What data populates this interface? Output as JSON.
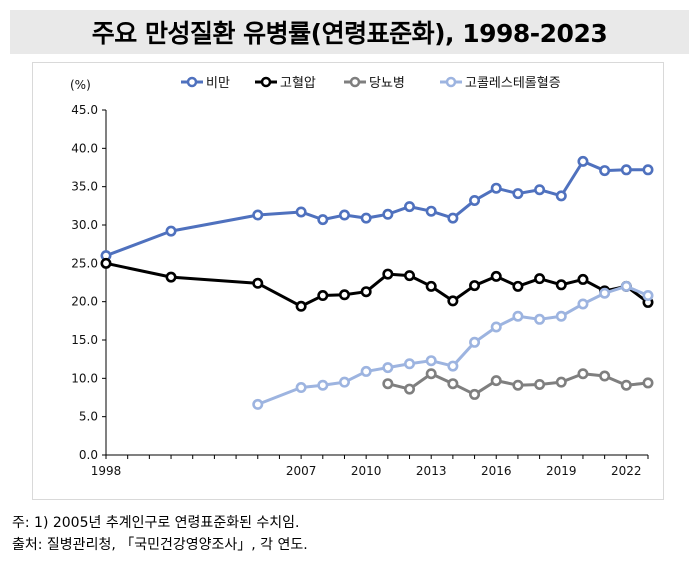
{
  "title": "주요 만성질환 유병률(연령표준화), 1998-2023",
  "notes": [
    "주: 1) 2005년 추계인구로 연령표준화된 수치임.",
    "출처: 질병관리청, 「국민건강영양조사」, 각 연도."
  ],
  "chart_data": {
    "type": "line",
    "ylabel": "(%)",
    "ylim": [
      0,
      45
    ],
    "yticks": [
      "0.0",
      "5.0",
      "10.0",
      "15.0",
      "20.0",
      "25.0",
      "30.0",
      "35.0",
      "40.0",
      "45.0"
    ],
    "xlim": [
      1998,
      2023
    ],
    "xticks": [
      "1998",
      "2007",
      "2010",
      "2013",
      "2016",
      "2019",
      "2022"
    ],
    "legend_position": "top",
    "grid": false,
    "series": [
      {
        "name": "비만",
        "color": "#4f71be",
        "marker_fill": "#ffffff",
        "x": [
          1998,
          2001,
          2005,
          2007,
          2008,
          2009,
          2010,
          2011,
          2012,
          2013,
          2014,
          2015,
          2016,
          2017,
          2018,
          2019,
          2020,
          2021,
          2022,
          2023
        ],
        "y": [
          26.0,
          29.2,
          31.3,
          31.7,
          30.7,
          31.3,
          30.9,
          31.4,
          32.4,
          31.8,
          30.9,
          33.2,
          34.8,
          34.1,
          34.6,
          33.8,
          38.3,
          37.1,
          37.2,
          37.2
        ]
      },
      {
        "name": "고혈압",
        "color": "#000000",
        "marker_fill": "#ffffff",
        "x": [
          1998,
          2001,
          2005,
          2007,
          2008,
          2009,
          2010,
          2011,
          2012,
          2013,
          2014,
          2015,
          2016,
          2017,
          2018,
          2019,
          2020,
          2021,
          2022,
          2023
        ],
        "y": [
          25.0,
          23.2,
          22.4,
          19.4,
          20.8,
          20.9,
          21.3,
          23.6,
          23.4,
          22.0,
          20.1,
          22.1,
          23.3,
          22.0,
          23.0,
          22.2,
          22.9,
          21.4,
          22.0,
          19.9
        ]
      },
      {
        "name": "당뇨병",
        "color": "#7f7f7f",
        "marker_fill": "#ffffff",
        "x": [
          2011,
          2012,
          2013,
          2014,
          2015,
          2016,
          2017,
          2018,
          2019,
          2020,
          2021,
          2022,
          2023
        ],
        "y": [
          9.3,
          8.6,
          10.6,
          9.3,
          7.9,
          9.7,
          9.1,
          9.2,
          9.5,
          10.6,
          10.3,
          9.1,
          9.4
        ]
      },
      {
        "name": "고콜레스테롤혈증",
        "color": "#9db4e0",
        "marker_fill": "#ffffff",
        "x": [
          2005,
          2007,
          2008,
          2009,
          2010,
          2011,
          2012,
          2013,
          2014,
          2015,
          2016,
          2017,
          2018,
          2019,
          2020,
          2021,
          2022,
          2023
        ],
        "y": [
          6.6,
          8.8,
          9.1,
          9.5,
          10.9,
          11.4,
          11.9,
          12.3,
          11.6,
          14.7,
          16.7,
          18.1,
          17.7,
          18.1,
          19.7,
          21.1,
          22.0,
          20.8
        ]
      }
    ]
  }
}
